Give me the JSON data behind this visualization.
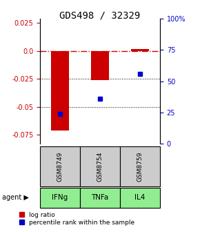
{
  "title": "GDS498 / 32329",
  "categories": [
    "IFNg",
    "TNFa",
    "IL4"
  ],
  "gsm_labels": [
    "GSM8749",
    "GSM8754",
    "GSM8759"
  ],
  "log_ratios": [
    -0.071,
    -0.026,
    0.002
  ],
  "percentile_ranks_pct": [
    24,
    36,
    56
  ],
  "ylim_left": [
    -0.083,
    0.029
  ],
  "ylim_right": [
    0,
    100
  ],
  "left_ticks": [
    0.025,
    0.0,
    -0.025,
    -0.05,
    -0.075
  ],
  "right_ticks": [
    100,
    75,
    50,
    25,
    0
  ],
  "bar_color": "#cc0000",
  "dot_color": "#0000cc",
  "zero_line_color": "#cc0000",
  "grid_color": "#000000",
  "gsm_color": "#cccccc",
  "agent_color": "#90ee90",
  "title_fontsize": 10,
  "tick_fontsize": 7,
  "label_fontsize": 7.5,
  "legend_fontsize": 6.5
}
